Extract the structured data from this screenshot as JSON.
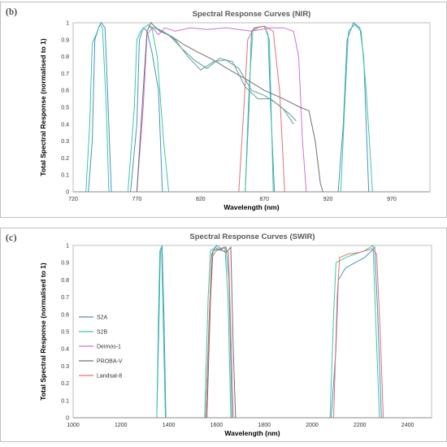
{
  "figure": {
    "label_b": "(b)",
    "label_c": "(c)"
  },
  "chart_data": [
    {
      "type": "line",
      "panel": "(b)",
      "title": "Spectral Response Curves (NIR)",
      "xlabel": "Wavelength (nm)",
      "ylabel": "Total Spectral Response (normalised to 1)",
      "xlim": [
        720,
        1000
      ],
      "ylim": [
        0,
        1
      ],
      "xticks": [
        720,
        770,
        820,
        870,
        920,
        970
      ],
      "yticks": [
        0,
        0.1,
        0.2,
        0.3,
        0.4,
        0.5,
        0.6,
        0.7,
        0.8,
        0.9,
        1
      ],
      "grid": false,
      "colors": {
        "S2A": "#4a90c8",
        "S2B": "#3cc8a0",
        "Deimos-1": "#d070d8",
        "PROBA-V": "#707070",
        "Landsat-8": "#e87070"
      },
      "series": [
        {
          "name": "S2A",
          "segments": [
            [
              [
                732,
                0
              ],
              [
                735,
                0.3
              ],
              [
                737,
                0.9
              ],
              [
                740,
                0.97
              ],
              [
                742,
                1.0
              ],
              [
                745,
                0.97
              ],
              [
                747,
                0.6
              ],
              [
                750,
                0
              ]
            ],
            [
              [
                765,
                0
              ],
              [
                770,
                0.4
              ],
              [
                772,
                0.9
              ],
              [
                775,
                0.97
              ],
              [
                778,
                0.95
              ],
              [
                782,
                0.82
              ],
              [
                787,
                0.6
              ],
              [
                790,
                0
              ]
            ],
            [
              [
                855,
                0
              ],
              [
                858,
                0.5
              ],
              [
                860,
                0.95
              ],
              [
                863,
                0.97
              ],
              [
                870,
                0.98
              ],
              [
                873,
                0.93
              ],
              [
                875,
                0.5
              ],
              [
                878,
                0
              ]
            ],
            [
              [
                928,
                0
              ],
              [
                932,
                0.4
              ],
              [
                935,
                0.9
              ],
              [
                940,
                1.0
              ],
              [
                945,
                0.97
              ],
              [
                948,
                0.8
              ],
              [
                952,
                0
              ]
            ]
          ]
        },
        {
          "name": "S2B",
          "segments": [
            [
              [
                730,
                0
              ],
              [
                733,
                0.4
              ],
              [
                735,
                0.88
              ],
              [
                738,
                0.93
              ],
              [
                741,
                0.99
              ],
              [
                743,
                0.97
              ],
              [
                746,
                0.5
              ],
              [
                748,
                0
              ]
            ],
            [
              [
                763,
                0
              ],
              [
                768,
                0.5
              ],
              [
                770,
                0.9
              ],
              [
                773,
                0.95
              ],
              [
                776,
                0.97
              ],
              [
                779,
                0.99
              ],
              [
                782,
                0.96
              ],
              [
                786,
                0.8
              ],
              [
                791,
                0.3
              ],
              [
                795,
                0
              ]
            ],
            [
              [
                855,
                0
              ],
              [
                858,
                0.6
              ],
              [
                861,
                0.95
              ],
              [
                865,
                0.97
              ],
              [
                870,
                0.98
              ],
              [
                874,
                0.9
              ],
              [
                877,
                0
              ]
            ],
            [
              [
                930,
                0
              ],
              [
                933,
                0.5
              ],
              [
                936,
                0.95
              ],
              [
                941,
                0.99
              ],
              [
                946,
                0.95
              ],
              [
                950,
                0.6
              ],
              [
                955,
                0
              ]
            ]
          ]
        },
        {
          "name": "Deimos-1",
          "segments": [
            [
              [
                770,
                0
              ],
              [
                775,
                0.5
              ],
              [
                778,
                0.93
              ],
              [
                782,
                0.97
              ],
              [
                787,
                0.93
              ],
              [
                792,
                0.97
              ],
              [
                800,
                0.95
              ],
              [
                812,
                0.97
              ],
              [
                825,
                0.96
              ],
              [
                840,
                0.97
              ],
              [
                860,
                0.95
              ],
              [
                875,
                0.97
              ],
              [
                885,
                0.97
              ],
              [
                893,
                0.95
              ],
              [
                897,
                0.8
              ],
              [
                900,
                0.3
              ],
              [
                903,
                0
              ]
            ]
          ]
        },
        {
          "name": "PROBA-V",
          "segments": [
            [
              [
                770,
                0
              ],
              [
                775,
                0.6
              ],
              [
                778,
                0.95
              ],
              [
                781,
                1.0
              ],
              [
                788,
                0.95
              ],
              [
                797,
                0.92
              ],
              [
                807,
                0.87
              ],
              [
                817,
                0.83
              ],
              [
                830,
                0.78
              ],
              [
                843,
                0.72
              ],
              [
                857,
                0.66
              ],
              [
                870,
                0.6
              ],
              [
                885,
                0.55
              ],
              [
                898,
                0.5
              ],
              [
                905,
                0.48
              ],
              [
                910,
                0.3
              ],
              [
                914,
                0.05
              ],
              [
                916,
                0
              ]
            ]
          ]
        },
        {
          "name": "Landsat-8",
          "segments": [
            [
              [
                850,
                0
              ],
              [
                854,
                0.5
              ],
              [
                857,
                0.9
              ],
              [
                862,
                0.97
              ],
              [
                870,
                0.98
              ],
              [
                877,
                0.95
              ],
              [
                882,
                0.6
              ],
              [
                886,
                0
              ]
            ]
          ]
        },
        {
          "name": "",
          "segments": [
            [
              [
                780,
                0.98
              ],
              [
                790,
                0.95
              ],
              [
                800,
                0.9
              ],
              [
                810,
                0.8
              ],
              [
                820,
                0.72
              ],
              [
                830,
                0.77
              ],
              [
                840,
                0.78
              ],
              [
                850,
                0.73
              ],
              [
                860,
                0.6
              ],
              [
                870,
                0.57
              ],
              [
                880,
                0.52
              ],
              [
                890,
                0.46
              ],
              [
                895,
                0.42
              ]
            ],
            [
              [
                785,
                0.97
              ],
              [
                795,
                0.93
              ],
              [
                805,
                0.85
              ],
              [
                815,
                0.78
              ],
              [
                825,
                0.73
              ],
              [
                835,
                0.79
              ],
              [
                845,
                0.77
              ],
              [
                855,
                0.62
              ],
              [
                865,
                0.55
              ],
              [
                875,
                0.55
              ],
              [
                885,
                0.49
              ],
              [
                893,
                0.4
              ]
            ]
          ]
        }
      ]
    },
    {
      "type": "line",
      "panel": "(c)",
      "title": "Spectral Response Curves (SWIR)",
      "xlabel": "Wavelength (nm)",
      "ylabel": "Total Spectral Response (normalised to 1)",
      "xlim": [
        1000,
        2500
      ],
      "ylim": [
        0,
        1
      ],
      "xticks": [
        1000,
        1200,
        1400,
        1600,
        1800,
        2000,
        2200,
        2400
      ],
      "yticks": [
        0,
        0.1,
        0.2,
        0.3,
        0.4,
        0.5,
        0.6,
        0.7,
        0.8,
        0.9,
        1
      ],
      "grid": false,
      "legend": {
        "placement": "center-left",
        "entries": [
          "S2A",
          "S2B",
          "Deimos-1",
          "PROBA-V",
          "Landsat-8"
        ]
      },
      "colors": {
        "S2A": "#4a90c8",
        "S2B": "#3cc8a0",
        "Deimos-1": "#d070d8",
        "PROBA-V": "#707070",
        "Landsat-8": "#e87070"
      },
      "series": [
        {
          "name": "S2A",
          "segments": [
            [
              [
                1350,
                0
              ],
              [
                1358,
                0.5
              ],
              [
                1365,
                0.97
              ],
              [
                1372,
                1.0
              ],
              [
                1380,
                0.6
              ],
              [
                1388,
                0
              ]
            ],
            [
              [
                1555,
                0
              ],
              [
                1570,
                0.6
              ],
              [
                1580,
                0.95
              ],
              [
                1600,
                1.0
              ],
              [
                1620,
                0.98
              ],
              [
                1640,
                0.99
              ],
              [
                1652,
                0.8
              ],
              [
                1665,
                0
              ]
            ],
            [
              [
                2080,
                0
              ],
              [
                2100,
                0.4
              ],
              [
                2110,
                0.8
              ],
              [
                2140,
                0.87
              ],
              [
                2180,
                0.9
              ],
              [
                2220,
                0.93
              ],
              [
                2250,
                0.97
              ],
              [
                2262,
                0.99
              ],
              [
                2275,
                0.6
              ],
              [
                2290,
                0
              ]
            ]
          ]
        },
        {
          "name": "S2B",
          "segments": [
            [
              [
                1350,
                0
              ],
              [
                1357,
                0.6
              ],
              [
                1363,
                0.97
              ],
              [
                1370,
                0.99
              ],
              [
                1378,
                0.5
              ],
              [
                1386,
                0
              ]
            ],
            [
              [
                1550,
                0
              ],
              [
                1565,
                0.7
              ],
              [
                1575,
                0.97
              ],
              [
                1595,
                0.99
              ],
              [
                1615,
                0.97
              ],
              [
                1635,
                0.99
              ],
              [
                1648,
                0.7
              ],
              [
                1660,
                0
              ]
            ],
            [
              [
                2075,
                0
              ],
              [
                2090,
                0.6
              ],
              [
                2100,
                0.9
              ],
              [
                2140,
                0.93
              ],
              [
                2180,
                0.95
              ],
              [
                2220,
                0.97
              ],
              [
                2255,
                1.0
              ],
              [
                2268,
                0.5
              ],
              [
                2282,
                0
              ]
            ]
          ]
        },
        {
          "name": "PROBA-V",
          "segments": [
            [
              [
                1560,
                0
              ],
              [
                1575,
                0.7
              ],
              [
                1585,
                0.97
              ],
              [
                1610,
                0.98
              ],
              [
                1640,
                0.96
              ],
              [
                1660,
                0.99
              ],
              [
                1670,
                0.4
              ],
              [
                1680,
                0
              ]
            ]
          ]
        },
        {
          "name": "Landsat-8",
          "segments": [
            [
              [
                1555,
                0
              ],
              [
                1570,
                0.6
              ],
              [
                1580,
                0.93
              ],
              [
                1600,
                0.97
              ],
              [
                1630,
                0.99
              ],
              [
                1650,
                0.96
              ],
              [
                1660,
                0.5
              ],
              [
                1670,
                0
              ]
            ],
            [
              [
                2090,
                0
              ],
              [
                2105,
                0.7
              ],
              [
                2115,
                0.93
              ],
              [
                2150,
                0.95
              ],
              [
                2200,
                0.96
              ],
              [
                2250,
                0.98
              ],
              [
                2270,
                0.95
              ],
              [
                2285,
                0.5
              ],
              [
                2298,
                0
              ]
            ]
          ]
        }
      ]
    }
  ]
}
